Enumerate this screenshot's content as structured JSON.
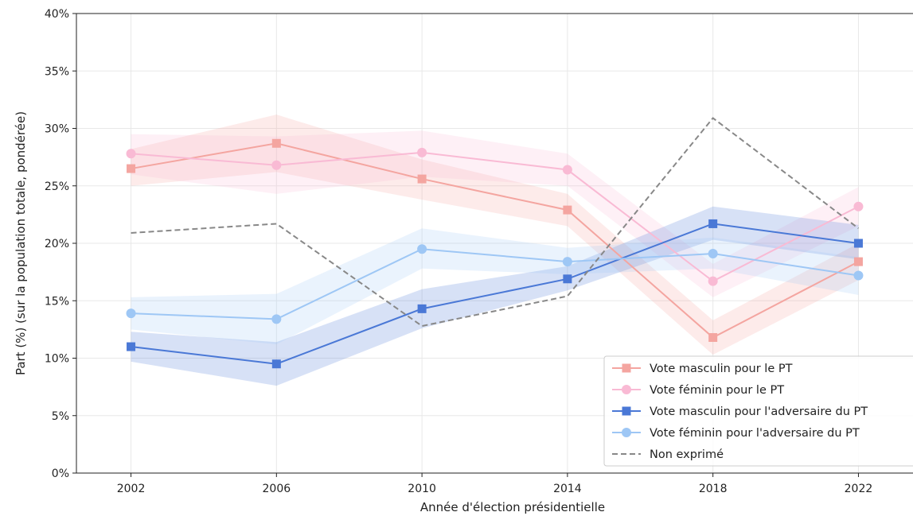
{
  "chart_data": {
    "type": "line",
    "title": "",
    "xlabel": "Année d'élection présidentielle",
    "ylabel": "Part (%) (sur la population totale, pondérée)",
    "x": [
      2002,
      2006,
      2010,
      2014,
      2018,
      2022
    ],
    "xlim": [
      2000.5,
      2023.5
    ],
    "ylim": [
      0,
      40
    ],
    "y_ticks": [
      0,
      5,
      10,
      15,
      20,
      25,
      30,
      35,
      40
    ],
    "y_tick_labels": [
      "0%",
      "5%",
      "10%",
      "15%",
      "20%",
      "25%",
      "30%",
      "35%",
      "40%"
    ],
    "x_tick_labels": [
      "2002",
      "2006",
      "2010",
      "2014",
      "2018",
      "2022"
    ],
    "grid": true,
    "legend_position": "lower-right",
    "series": [
      {
        "name": "Vote masculin pour le PT",
        "values": [
          26.5,
          28.7,
          25.6,
          22.9,
          11.8,
          18.4
        ],
        "ci_low": [
          25.0,
          26.2,
          23.8,
          21.5,
          10.3,
          16.8
        ],
        "ci_high": [
          28.2,
          31.2,
          27.3,
          24.3,
          13.3,
          20.0
        ],
        "color": "#f4a5a0",
        "marker": "square",
        "dash": "solid"
      },
      {
        "name": "Vote féminin pour le PT",
        "values": [
          27.8,
          26.8,
          27.9,
          26.4,
          16.7,
          23.2
        ],
        "ci_low": [
          26.0,
          24.3,
          25.8,
          25.0,
          15.3,
          21.5
        ],
        "ci_high": [
          29.5,
          29.3,
          29.8,
          27.8,
          18.2,
          24.9
        ],
        "color": "#f9bad4",
        "marker": "circle",
        "dash": "solid"
      },
      {
        "name": "Vote masculin pour l'adversaire du PT",
        "values": [
          11.0,
          9.5,
          14.3,
          16.9,
          21.7,
          20.0
        ],
        "ci_low": [
          9.7,
          7.6,
          12.6,
          15.9,
          20.3,
          18.6
        ],
        "ci_high": [
          12.3,
          11.4,
          16.0,
          18.0,
          23.2,
          21.6
        ],
        "color": "#4a78d6",
        "marker": "square",
        "dash": "solid"
      },
      {
        "name": "Vote féminin pour l'adversaire du PT",
        "values": [
          13.9,
          13.4,
          19.5,
          18.4,
          19.1,
          17.2
        ],
        "ci_low": [
          12.5,
          11.2,
          17.8,
          17.3,
          17.8,
          15.5
        ],
        "ci_high": [
          15.3,
          15.6,
          21.3,
          19.6,
          20.5,
          18.8
        ],
        "color": "#9ec7f5",
        "marker": "circle",
        "dash": "solid"
      },
      {
        "name": "Non exprimé",
        "values": [
          20.9,
          21.7,
          12.8,
          15.4,
          30.9,
          21.3
        ],
        "color": "#888888",
        "marker": "none",
        "dash": "dashed"
      }
    ]
  }
}
